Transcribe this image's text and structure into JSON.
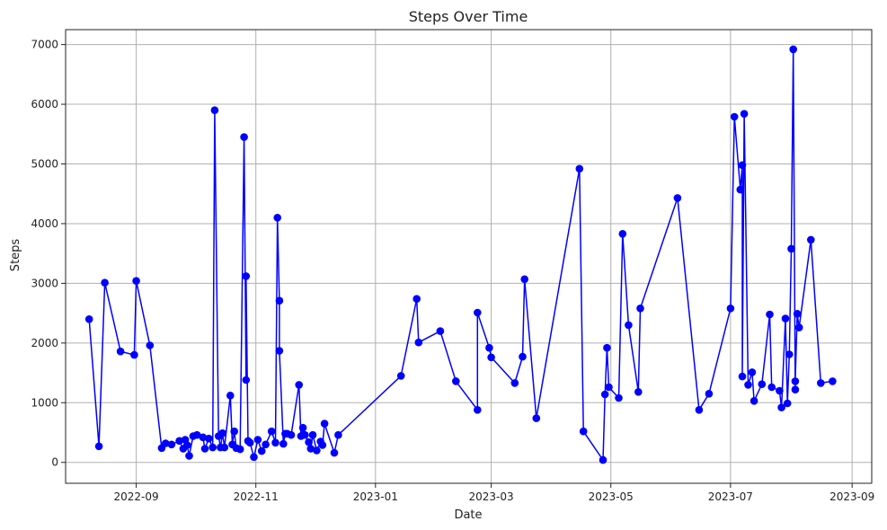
{
  "chart_data": {
    "type": "line",
    "title": "Steps Over Time",
    "xlabel": "Date",
    "ylabel": "Steps",
    "grid": true,
    "marker": "circle",
    "line_color": "#0000ff",
    "xlim": [
      "2022-07-27",
      "2023-09-11"
    ],
    "ylim": [
      -350,
      7250
    ],
    "x_ticks": [
      "2022-09",
      "2022-11",
      "2023-01",
      "2023-03",
      "2023-05",
      "2023-07",
      "2023-09"
    ],
    "y_ticks": [
      0,
      1000,
      2000,
      3000,
      4000,
      5000,
      6000,
      7000
    ],
    "series": [
      {
        "x": [
          "2022-08-08",
          "2022-08-13",
          "2022-08-16",
          "2022-08-24",
          "2022-08-31",
          "2022-09-01",
          "2022-09-08",
          "2022-09-14",
          "2022-09-16",
          "2022-09-19",
          "2022-09-23",
          "2022-09-25",
          "2022-09-26",
          "2022-09-27",
          "2022-09-28",
          "2022-09-30",
          "2022-10-02",
          "2022-10-05",
          "2022-10-06",
          "2022-10-08",
          "2022-10-10",
          "2022-10-11",
          "2022-10-13",
          "2022-10-14",
          "2022-10-15",
          "2022-10-16",
          "2022-10-19",
          "2022-10-20",
          "2022-10-21",
          "2022-10-22",
          "2022-10-24",
          "2022-10-26",
          "2022-10-27",
          "2022-10-27",
          "2022-10-28",
          "2022-10-29",
          "2022-10-31",
          "2022-11-02",
          "2022-11-04",
          "2022-11-06",
          "2022-11-09",
          "2022-11-11",
          "2022-11-12",
          "2022-11-13",
          "2022-11-13",
          "2022-11-15",
          "2022-11-16",
          "2022-11-17",
          "2022-11-19",
          "2022-11-23",
          "2022-11-24",
          "2022-11-25",
          "2022-11-26",
          "2022-11-28",
          "2022-11-29",
          "2022-11-30",
          "2022-12-02",
          "2022-12-04",
          "2022-12-05",
          "2022-12-06",
          "2022-12-11",
          "2022-12-13",
          "2023-01-14",
          "2023-01-22",
          "2023-01-23",
          "2023-02-03",
          "2023-02-11",
          "2023-02-22",
          "2023-02-22",
          "2023-02-28",
          "2023-03-01",
          "2023-03-13",
          "2023-03-17",
          "2023-03-18",
          "2023-03-24",
          "2023-04-15",
          "2023-04-17",
          "2023-04-27",
          "2023-04-28",
          "2023-04-29",
          "2023-04-30",
          "2023-05-05",
          "2023-05-07",
          "2023-05-10",
          "2023-05-15",
          "2023-05-16",
          "2023-06-04",
          "2023-06-15",
          "2023-06-20",
          "2023-07-01",
          "2023-07-03",
          "2023-07-06",
          "2023-07-07",
          "2023-07-07",
          "2023-07-08",
          "2023-07-10",
          "2023-07-12",
          "2023-07-13",
          "2023-07-17",
          "2023-07-21",
          "2023-07-22",
          "2023-07-26",
          "2023-07-27",
          "2023-07-29",
          "2023-07-30",
          "2023-07-31",
          "2023-08-01",
          "2023-08-02",
          "2023-08-03",
          "2023-08-03",
          "2023-08-04",
          "2023-08-05",
          "2023-08-11",
          "2023-08-16",
          "2023-08-22"
        ],
        "y": [
          2400,
          270,
          3010,
          1860,
          1800,
          3040,
          1960,
          240,
          320,
          300,
          360,
          230,
          380,
          290,
          110,
          440,
          460,
          420,
          230,
          400,
          250,
          5900,
          440,
          250,
          490,
          250,
          1120,
          300,
          520,
          240,
          220,
          5450,
          1380,
          3120,
          360,
          330,
          90,
          380,
          190,
          300,
          520,
          330,
          4100,
          2710,
          1870,
          310,
          480,
          480,
          460,
          1300,
          440,
          580,
          460,
          340,
          230,
          460,
          200,
          350,
          290,
          650,
          160,
          460,
          1450,
          2740,
          2010,
          2200,
          1360,
          880,
          2510,
          1920,
          1760,
          1330,
          1770,
          3070,
          740,
          4920,
          520,
          40,
          1140,
          1920,
          1260,
          1080,
          3830,
          2300,
          1180,
          2580,
          4430,
          880,
          1150,
          2580,
          5790,
          4570,
          4980,
          1440,
          5840,
          1300,
          1510,
          1030,
          1310,
          2480,
          1260,
          1200,
          920,
          2410,
          990,
          1810,
          3580,
          6920,
          1220,
          1360,
          2490,
          2260,
          3730,
          1330,
          1360
        ]
      }
    ]
  }
}
